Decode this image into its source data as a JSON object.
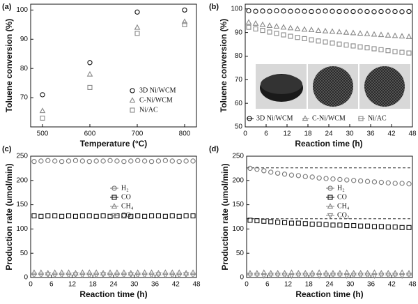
{
  "chart_data": [
    {
      "type": "scatter",
      "label": "(a)",
      "x_label": "Temperature (°C)",
      "y_label": "Toluene conversion (%)",
      "xlim": [
        475,
        825
      ],
      "xticks": [
        500,
        600,
        700,
        800
      ],
      "ylim": [
        60,
        102
      ],
      "yticks": [
        70,
        80,
        90,
        100
      ],
      "legend": "lower right",
      "series": [
        {
          "name": "3D Ni/WCM",
          "color": "#111111",
          "marker": "circle",
          "x": [
            500,
            600,
            700,
            800
          ],
          "values": [
            71,
            82,
            99.3,
            100
          ]
        },
        {
          "name": "C-Ni/WCM",
          "color": "#888888",
          "marker": "triangle",
          "x": [
            500,
            600,
            700,
            800
          ],
          "values": [
            65.5,
            78,
            94,
            96
          ]
        },
        {
          "name": "Ni/AC",
          "color": "#888888",
          "marker": "square",
          "x": [
            500,
            600,
            700,
            800
          ],
          "values": [
            63,
            73.5,
            92,
            95
          ]
        }
      ]
    },
    {
      "type": "scatter",
      "label": "(b)",
      "x_label": "Reaction time (h)",
      "y_label": "Toluene conversion (%)",
      "xlim": [
        0,
        48
      ],
      "xticks": [
        0,
        6,
        12,
        18,
        24,
        30,
        36,
        42,
        48
      ],
      "ylim": [
        50,
        102
      ],
      "yticks": [
        50,
        60,
        70,
        80,
        90,
        100
      ],
      "legend": "lower center",
      "x": [
        1,
        3,
        5,
        7,
        9,
        11,
        13,
        15,
        17,
        19,
        21,
        23,
        25,
        27,
        29,
        31,
        33,
        35,
        37,
        39,
        41,
        43,
        45,
        47
      ],
      "series": [
        {
          "name": "3D Ni/WCM",
          "color": "#111111",
          "marker": "circle",
          "values": [
            99.2,
            99.0,
            99.1,
            99.0,
            99.2,
            99.1,
            99.0,
            99.1,
            99.0,
            98.9,
            99.0,
            99.1,
            99.0,
            98.9,
            99.0,
            98.9,
            99.0,
            98.9,
            98.8,
            98.9,
            99.0,
            98.9,
            98.8,
            98.9
          ]
        },
        {
          "name": "C-Ni/WCM",
          "color": "#888888",
          "marker": "triangle",
          "values": [
            94.3,
            93.8,
            93.3,
            92.9,
            92.6,
            92.2,
            91.9,
            91.6,
            91.3,
            91.1,
            90.8,
            90.6,
            90.4,
            90.2,
            90.0,
            89.8,
            89.6,
            89.4,
            89.2,
            89.0,
            88.8,
            88.6,
            88.4,
            88.2
          ]
        },
        {
          "name": "Ni/AC",
          "color": "#888888",
          "marker": "square",
          "values": [
            92.2,
            91.5,
            90.9,
            90.2,
            89.6,
            89.0,
            88.4,
            87.9,
            87.4,
            86.9,
            86.4,
            86.0,
            85.5,
            85.1,
            84.7,
            84.3,
            83.9,
            83.5,
            83.1,
            82.7,
            82.3,
            81.9,
            81.6,
            81.3
          ]
        }
      ]
    },
    {
      "type": "scatter",
      "label": "(c)",
      "x_label": "Reaction time (h)",
      "y_label": "Production rate (umol/min)",
      "xlim": [
        0,
        48
      ],
      "xticks": [
        0,
        6,
        12,
        18,
        24,
        30,
        36,
        42,
        48
      ],
      "ylim": [
        0,
        250
      ],
      "yticks": [
        0,
        50,
        100,
        150,
        200,
        250
      ],
      "legend": "center right",
      "x": [
        1,
        3,
        5,
        7,
        9,
        11,
        13,
        15,
        17,
        19,
        21,
        23,
        25,
        27,
        29,
        31,
        33,
        35,
        37,
        39,
        41,
        43,
        45,
        47
      ],
      "series": [
        {
          "name": "H₂",
          "color": "#777777",
          "marker": "circle",
          "values": [
            239,
            240,
            241,
            240,
            239,
            240,
            241,
            240,
            239,
            240,
            240,
            241,
            240,
            239,
            240,
            241,
            240,
            239,
            240,
            241,
            240,
            239,
            240,
            240
          ]
        },
        {
          "name": "CO",
          "color": "#111111",
          "marker": "square",
          "values": [
            127,
            126,
            127,
            127,
            126,
            127,
            126,
            127,
            127,
            126,
            127,
            126,
            127,
            127,
            126,
            127,
            126,
            127,
            127,
            126,
            127,
            126,
            127,
            127
          ]
        },
        {
          "name": "CH₄",
          "color": "#888888",
          "marker": "triangle",
          "values": [
            10,
            10,
            9,
            10,
            10,
            10,
            9,
            10,
            10,
            10,
            9,
            10,
            10,
            10,
            9,
            10,
            10,
            10,
            9,
            10,
            10,
            10,
            9,
            10
          ]
        },
        {
          "name": "CO₂",
          "color": "#888888",
          "marker": "tri-down",
          "values": [
            5,
            5,
            6,
            5,
            5,
            5,
            6,
            5,
            5,
            5,
            6,
            5,
            5,
            5,
            6,
            5,
            5,
            5,
            6,
            5,
            5,
            5,
            6,
            5
          ]
        }
      ]
    },
    {
      "type": "scatter",
      "label": "(d)",
      "x_label": "Reaction time (h)",
      "y_label": "Production rate (umol/min)",
      "xlim": [
        0,
        48
      ],
      "xticks": [
        0,
        6,
        12,
        18,
        24,
        30,
        36,
        42,
        48
      ],
      "ylim": [
        0,
        250
      ],
      "yticks": [
        0,
        50,
        100,
        150,
        200,
        250
      ],
      "legend": "center right",
      "reference_lines": [
        226,
        121
      ],
      "x": [
        1,
        3,
        5,
        7,
        9,
        11,
        13,
        15,
        17,
        19,
        21,
        23,
        25,
        27,
        29,
        31,
        33,
        35,
        37,
        39,
        41,
        43,
        45,
        47
      ],
      "series": [
        {
          "name": "H₂",
          "color": "#777777",
          "marker": "circle",
          "values": [
            225,
            223,
            220,
            217,
            215,
            213,
            211,
            210,
            208,
            207,
            205,
            204,
            203,
            202,
            201,
            200,
            199,
            198,
            197,
            196,
            195,
            194,
            194,
            193
          ]
        },
        {
          "name": "CO",
          "color": "#111111",
          "marker": "square",
          "values": [
            118,
            117,
            116,
            115,
            114,
            113,
            112,
            112,
            111,
            110,
            110,
            109,
            108,
            108,
            107,
            107,
            106,
            106,
            105,
            105,
            104,
            104,
            103,
            103
          ]
        },
        {
          "name": "CH₄",
          "color": "#888888",
          "marker": "triangle",
          "values": [
            9,
            9,
            10,
            9,
            9,
            9,
            10,
            9,
            9,
            9,
            10,
            9,
            9,
            9,
            10,
            9,
            9,
            9,
            10,
            9,
            9,
            9,
            10,
            9
          ]
        },
        {
          "name": "CO₂",
          "color": "#888888",
          "marker": "tri-down",
          "values": [
            5,
            5,
            4,
            5,
            5,
            5,
            4,
            5,
            5,
            5,
            4,
            5,
            5,
            5,
            4,
            5,
            5,
            5,
            4,
            5,
            5,
            5,
            4,
            5
          ]
        }
      ]
    }
  ]
}
